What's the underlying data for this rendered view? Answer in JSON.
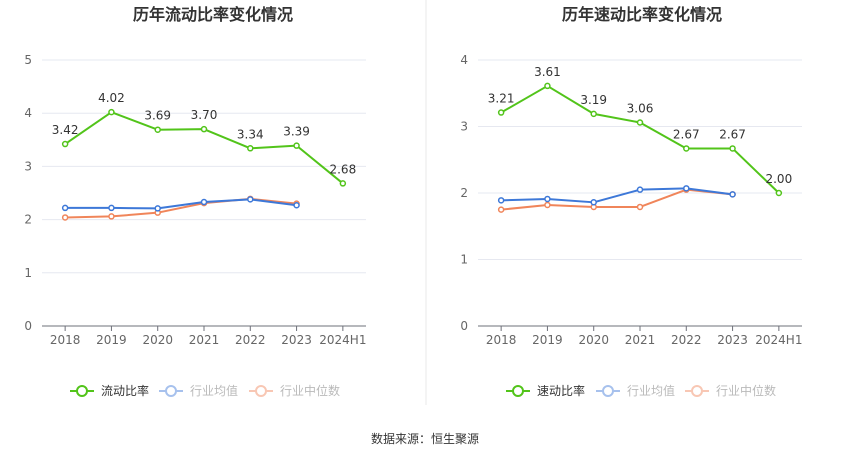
{
  "chart_data": [
    {
      "type": "line",
      "title": "历年流动比率变化情况",
      "categories": [
        "2018",
        "2019",
        "2020",
        "2021",
        "2022",
        "2023",
        "2024H1"
      ],
      "ylim": [
        0,
        5
      ],
      "yticks": [
        0,
        1,
        2,
        3,
        4,
        5
      ],
      "grid": true,
      "legend_position": "bottom",
      "series": [
        {
          "name": "流动比率",
          "color": "#52c41a",
          "values": [
            3.42,
            4.02,
            3.69,
            3.7,
            3.34,
            3.39,
            2.68
          ],
          "labels": [
            "3.42",
            "4.02",
            "3.69",
            "3.70",
            "3.34",
            "3.39",
            "2.68"
          ]
        },
        {
          "name": "行业均值",
          "color": "#3d78d8",
          "values": [
            2.22,
            2.22,
            2.21,
            2.33,
            2.38,
            2.27,
            null
          ]
        },
        {
          "name": "行业中位数",
          "color": "#f0855a",
          "values": [
            2.04,
            2.06,
            2.13,
            2.31,
            2.39,
            2.3,
            null
          ]
        }
      ]
    },
    {
      "type": "line",
      "title": "历年速动比率变化情况",
      "categories": [
        "2018",
        "2019",
        "2020",
        "2021",
        "2022",
        "2023",
        "2024H1"
      ],
      "ylim": [
        0,
        4
      ],
      "yticks": [
        0,
        1,
        2,
        3,
        4
      ],
      "grid": true,
      "legend_position": "bottom",
      "series": [
        {
          "name": "速动比率",
          "color": "#52c41a",
          "values": [
            3.21,
            3.61,
            3.19,
            3.06,
            2.67,
            2.67,
            2.0
          ],
          "labels": [
            "3.21",
            "3.61",
            "3.19",
            "3.06",
            "2.67",
            "2.67",
            "2.00"
          ]
        },
        {
          "name": "行业均值",
          "color": "#3d78d8",
          "values": [
            1.89,
            1.91,
            1.86,
            2.05,
            2.07,
            1.98,
            null
          ]
        },
        {
          "name": "行业中位数",
          "color": "#f0855a",
          "values": [
            1.75,
            1.82,
            1.79,
            1.79,
            2.05,
            1.98,
            null
          ]
        }
      ]
    }
  ],
  "footer": {
    "source": "数据来源：恒生聚源"
  },
  "colors": {
    "grid": "#e6e8f0",
    "axis": "#6e7079",
    "divider": "#e8e8e8",
    "legend_dim": "#cccccc"
  }
}
